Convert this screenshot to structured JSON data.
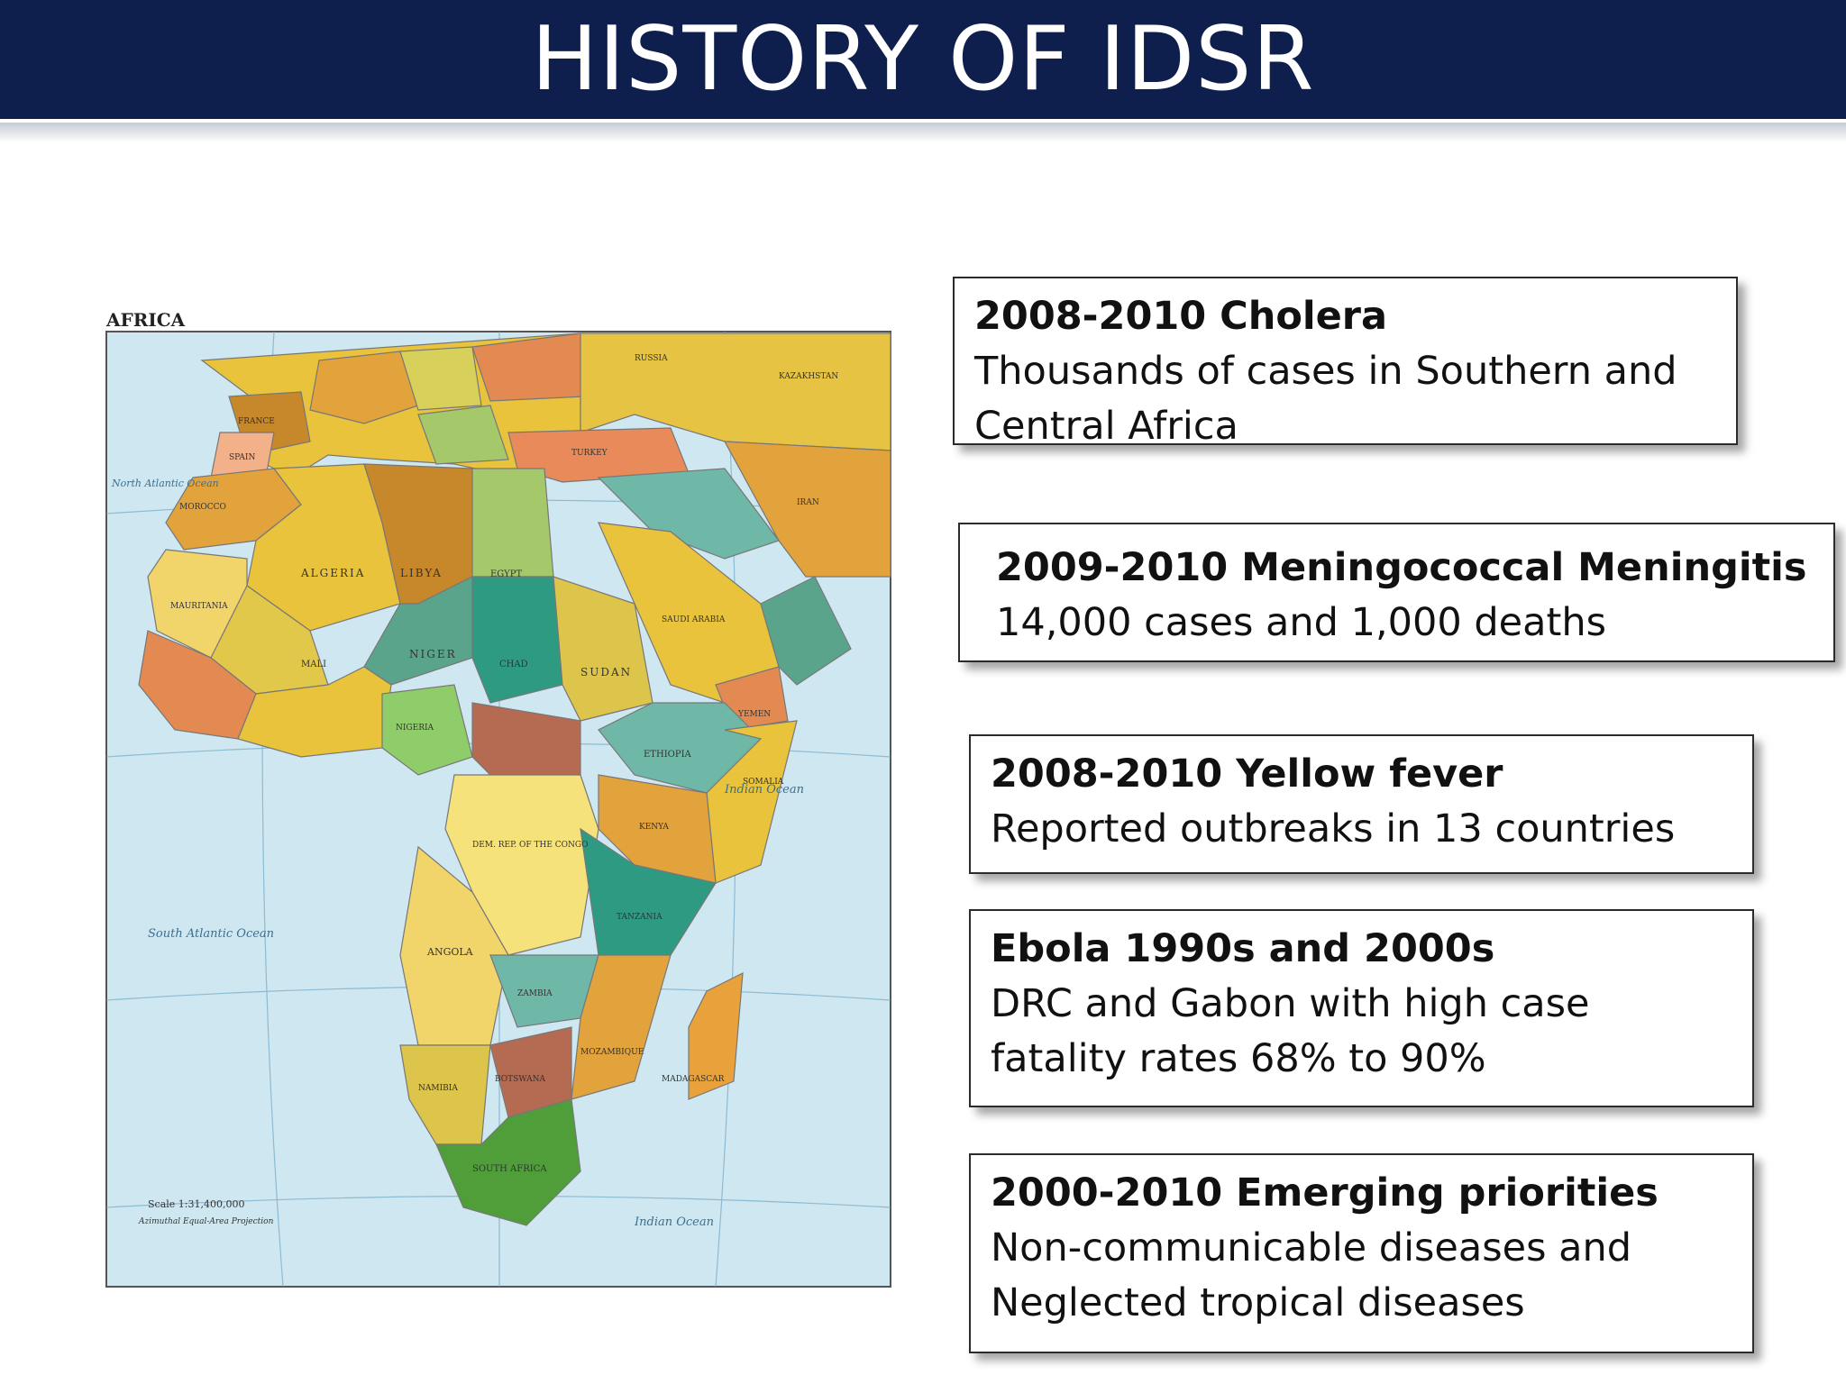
{
  "slide": {
    "title": "HISTORY OF IDSR"
  },
  "map": {
    "heading": "AFRICA",
    "ocean_north_atlantic": "North Atlantic Ocean",
    "ocean_south_atlantic": "South Atlantic Ocean",
    "ocean_indian": "Indian Ocean",
    "ocean_indian_bottom": "Indian Ocean",
    "scale": "Scale 1:31,400,000",
    "projection": "Azimuthal Equal-Area Projection",
    "countries": [
      "ALGERIA",
      "LIBYA",
      "EGYPT",
      "NIGER",
      "MALI",
      "CHAD",
      "SUDAN",
      "MAURITANIA",
      "NIGERIA",
      "ETHIOPIA",
      "SOMALIA",
      "KENYA",
      "TANZANIA",
      "ANGOLA",
      "ZAMBIA",
      "NAMIBIA",
      "BOTSWANA",
      "SOUTH AFRICA",
      "MOZAMBIQUE",
      "MADAGASCAR",
      "DEM. REP. OF THE CONGO",
      "SAUDI ARABIA",
      "TURKEY",
      "FRANCE",
      "SPAIN",
      "RUSSIA",
      "KAZAKHSTAN",
      "IRAN",
      "MOROCCO",
      "YEMEN"
    ]
  },
  "boxes": [
    {
      "title": "2008-2010 Cholera",
      "lines": [
        "Thousands of cases in Southern  and",
        "Central Africa"
      ]
    },
    {
      "title": "2009-2010 Meningococcal Meningitis",
      "lines": [
        "14,000 cases and 1,000 deaths"
      ]
    },
    {
      "title": "2008-2010 Yellow fever",
      "lines": [
        "Reported outbreaks in 13 countries"
      ]
    },
    {
      "title": "Ebola 1990s and 2000s",
      "lines": [
        "DRC and Gabon with high case",
        "fatality rates 68% to 90%"
      ]
    },
    {
      "title": "2000-2010 Emerging priorities",
      "lines": [
        "Non-communicable diseases and",
        "Neglected tropical diseases"
      ]
    }
  ],
  "colors": {
    "header": "#0e1f4d",
    "ocean": "#cfe7f0"
  }
}
